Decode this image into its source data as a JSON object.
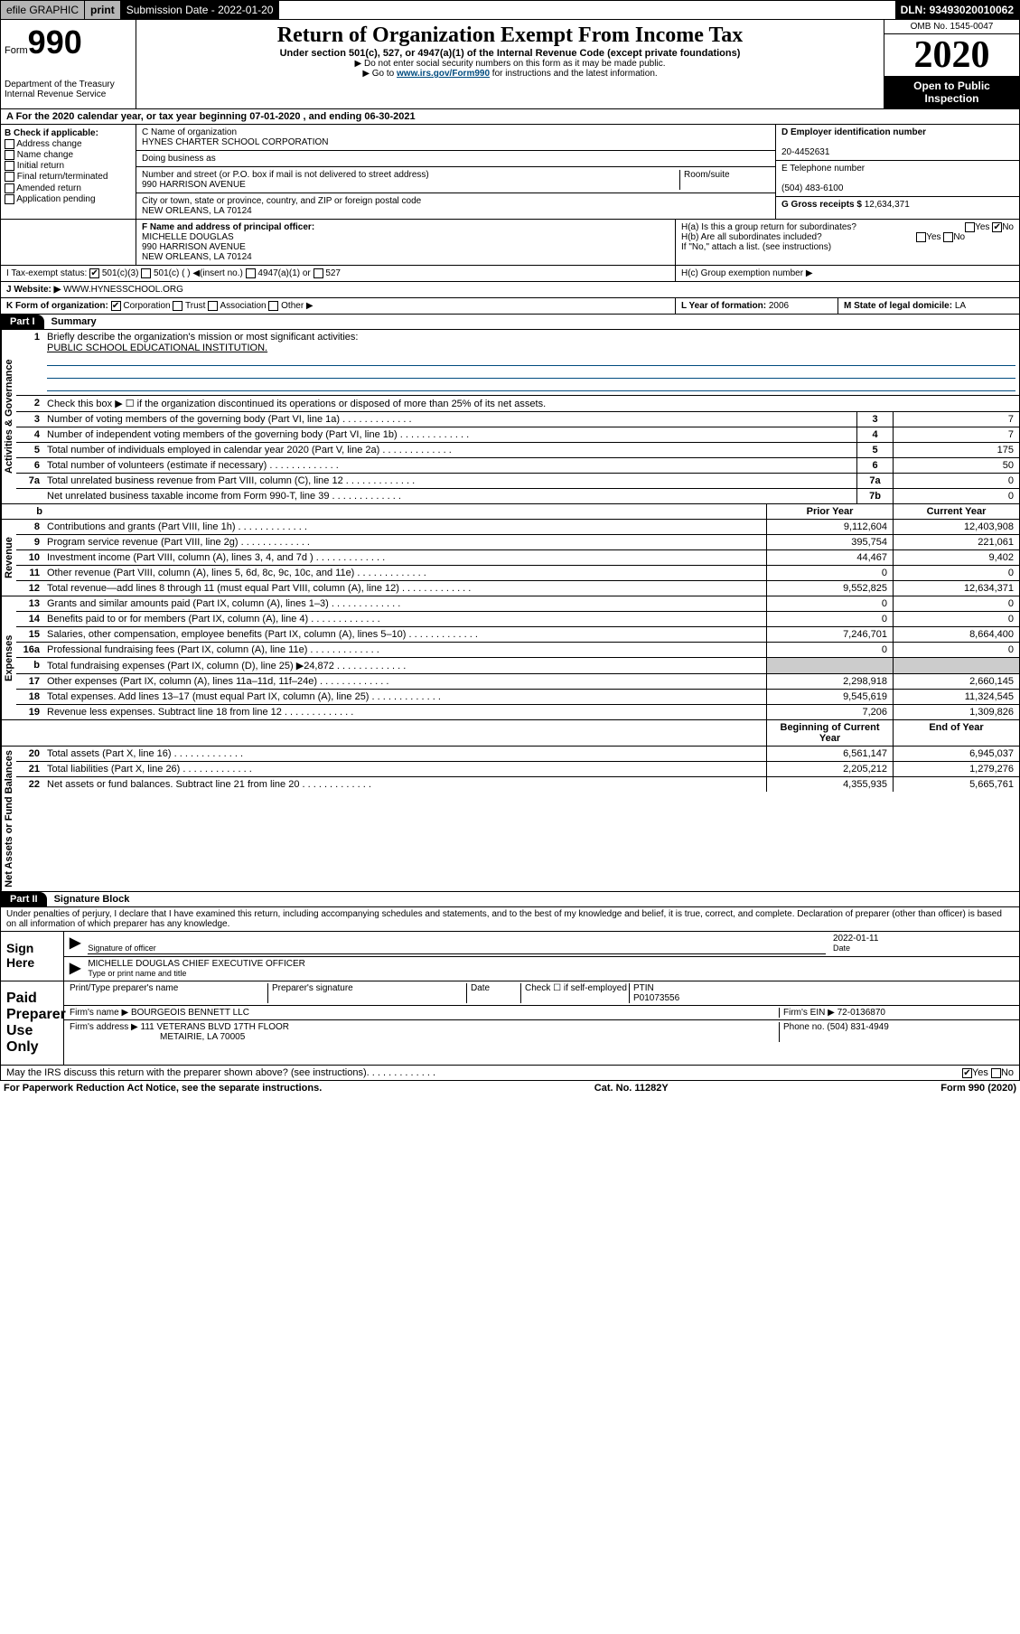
{
  "topbar": {
    "efile": "efile GRAPHIC",
    "print": "print",
    "subdate_label": "Submission Date - ",
    "subdate": "2022-01-20",
    "dln_label": "DLN: ",
    "dln": "93493020010062"
  },
  "header": {
    "form_prefix": "Form",
    "form_no": "990",
    "dept": "Department of the Treasury",
    "irs": "Internal Revenue Service",
    "title": "Return of Organization Exempt From Income Tax",
    "sub": "Under section 501(c), 527, or 4947(a)(1) of the Internal Revenue Code (except private foundations)",
    "note1": "▶ Do not enter social security numbers on this form as it may be made public.",
    "note2_a": "▶ Go to ",
    "note2_link": "www.irs.gov/Form990",
    "note2_b": " for instructions and the latest information.",
    "omb": "OMB No. 1545-0047",
    "year": "2020",
    "open": "Open to Public Inspection"
  },
  "rowA": {
    "text": "A For the 2020 calendar year, or tax year beginning 07-01-2020   , and ending 06-30-2021"
  },
  "colB": {
    "label": "B Check if applicable:",
    "items": [
      "Address change",
      "Name change",
      "Initial return",
      "Final return/terminated",
      "Amended return",
      "Application pending"
    ]
  },
  "colC": {
    "name_label": "C Name of organization",
    "name": "HYNES CHARTER SCHOOL CORPORATION",
    "dba_label": "Doing business as",
    "dba": "",
    "addr_label": "Number and street (or P.O. box if mail is not delivered to street address)",
    "room_label": "Room/suite",
    "addr": "990 HARRISON AVENUE",
    "city_label": "City or town, state or province, country, and ZIP or foreign postal code",
    "city": "NEW ORLEANS, LA  70124"
  },
  "colD": {
    "ein_label": "D Employer identification number",
    "ein": "20-4452631",
    "tel_label": "E Telephone number",
    "tel": "(504) 483-6100",
    "gross_label": "G Gross receipts $ ",
    "gross": "12,634,371"
  },
  "rowF": {
    "label": "F  Name and address of principal officer:",
    "name": "MICHELLE DOUGLAS",
    "addr1": "990 HARRISON AVENUE",
    "addr2": "NEW ORLEANS, LA  70124"
  },
  "rowH": {
    "a": "H(a)  Is this a group return for subordinates?",
    "b": "H(b)  Are all subordinates included?",
    "bnote": "If \"No,\" attach a list. (see instructions)",
    "c": "H(c)  Group exemption number ▶"
  },
  "rowI": {
    "label": "I    Tax-exempt status:",
    "opts": [
      "501(c)(3)",
      "501(c) (  ) ◀(insert no.)",
      "4947(a)(1) or",
      "527"
    ]
  },
  "rowJ": {
    "label": "J    Website: ▶",
    "val": "  WWW.HYNESSCHOOL.ORG"
  },
  "rowK": {
    "label": "K Form of organization:",
    "opts": [
      "Corporation",
      "Trust",
      "Association",
      "Other ▶"
    ],
    "year_label": "L Year of formation: ",
    "year": "2006",
    "state_label": "M State of legal domicile: ",
    "state": "LA"
  },
  "part1": {
    "tab": "Part I",
    "title": "Summary"
  },
  "summary": {
    "q1": "Briefly describe the organization's mission or most significant activities:",
    "q1val": "PUBLIC SCHOOL EDUCATIONAL INSTITUTION.",
    "q2": "Check this box ▶ ☐  if the organization discontinued its operations or disposed of more than 25% of its net assets.",
    "rows": [
      {
        "n": "3",
        "t": "Number of voting members of the governing body (Part VI, line 1a)",
        "c": "3",
        "v": "7"
      },
      {
        "n": "4",
        "t": "Number of independent voting members of the governing body (Part VI, line 1b)",
        "c": "4",
        "v": "7"
      },
      {
        "n": "5",
        "t": "Total number of individuals employed in calendar year 2020 (Part V, line 2a)",
        "c": "5",
        "v": "175"
      },
      {
        "n": "6",
        "t": "Total number of volunteers (estimate if necessary)",
        "c": "6",
        "v": "50"
      },
      {
        "n": "7a",
        "t": "Total unrelated business revenue from Part VIII, column (C), line 12",
        "c": "7a",
        "v": "0"
      },
      {
        "n": "",
        "t": "Net unrelated business taxable income from Form 990-T, line 39",
        "c": "7b",
        "v": "0"
      }
    ]
  },
  "tabs": {
    "gov": "Activities & Governance",
    "rev": "Revenue",
    "exp": "Expenses",
    "net": "Net Assets or Fund Balances"
  },
  "cols": {
    "prior": "Prior Year",
    "current": "Current Year",
    "begin": "Beginning of Current Year",
    "end": "End of Year"
  },
  "revenue": [
    {
      "n": "8",
      "t": "Contributions and grants (Part VIII, line 1h)",
      "p": "9,112,604",
      "c": "12,403,908"
    },
    {
      "n": "9",
      "t": "Program service revenue (Part VIII, line 2g)",
      "p": "395,754",
      "c": "221,061"
    },
    {
      "n": "10",
      "t": "Investment income (Part VIII, column (A), lines 3, 4, and 7d )",
      "p": "44,467",
      "c": "9,402"
    },
    {
      "n": "11",
      "t": "Other revenue (Part VIII, column (A), lines 5, 6d, 8c, 9c, 10c, and 11e)",
      "p": "0",
      "c": "0"
    },
    {
      "n": "12",
      "t": "Total revenue—add lines 8 through 11 (must equal Part VIII, column (A), line 12)",
      "p": "9,552,825",
      "c": "12,634,371"
    }
  ],
  "expenses": [
    {
      "n": "13",
      "t": "Grants and similar amounts paid (Part IX, column (A), lines 1–3)",
      "p": "0",
      "c": "0"
    },
    {
      "n": "14",
      "t": "Benefits paid to or for members (Part IX, column (A), line 4)",
      "p": "0",
      "c": "0"
    },
    {
      "n": "15",
      "t": "Salaries, other compensation, employee benefits (Part IX, column (A), lines 5–10)",
      "p": "7,246,701",
      "c": "8,664,400"
    },
    {
      "n": "16a",
      "t": "Professional fundraising fees (Part IX, column (A), line 11e)",
      "p": "0",
      "c": "0"
    },
    {
      "n": "b",
      "t": "Total fundraising expenses (Part IX, column (D), line 25) ▶24,872",
      "p": "",
      "c": "",
      "shade": true
    },
    {
      "n": "17",
      "t": "Other expenses (Part IX, column (A), lines 11a–11d, 11f–24e)",
      "p": "2,298,918",
      "c": "2,660,145"
    },
    {
      "n": "18",
      "t": "Total expenses. Add lines 13–17 (must equal Part IX, column (A), line 25)",
      "p": "9,545,619",
      "c": "11,324,545"
    },
    {
      "n": "19",
      "t": "Revenue less expenses. Subtract line 18 from line 12",
      "p": "7,206",
      "c": "1,309,826"
    }
  ],
  "netassets": [
    {
      "n": "20",
      "t": "Total assets (Part X, line 16)",
      "p": "6,561,147",
      "c": "6,945,037"
    },
    {
      "n": "21",
      "t": "Total liabilities (Part X, line 26)",
      "p": "2,205,212",
      "c": "1,279,276"
    },
    {
      "n": "22",
      "t": "Net assets or fund balances. Subtract line 21 from line 20",
      "p": "4,355,935",
      "c": "5,665,761"
    }
  ],
  "part2": {
    "tab": "Part II",
    "title": "Signature Block",
    "decl": "Under penalties of perjury, I declare that I have examined this return, including accompanying schedules and statements, and to the best of my knowledge and belief, it is true, correct, and complete. Declaration of preparer (other than officer) is based on all information of which preparer has any knowledge."
  },
  "sign": {
    "here": "Sign Here",
    "sig_label": "Signature of officer",
    "date_label": "Date",
    "date": "2022-01-11",
    "name": "MICHELLE DOUGLAS  CHIEF EXECUTIVE OFFICER",
    "name_label": "Type or print name and title"
  },
  "paid": {
    "title": "Paid Preparer Use Only",
    "pname_label": "Print/Type preparer's name",
    "psig_label": "Preparer's signature",
    "pdate_label": "Date",
    "check_label": "Check ☐ if self-employed",
    "ptin_label": "PTIN",
    "ptin": "P01073556",
    "firm_label": "Firm's name   ▶",
    "firm": "BOURGEOIS BENNETT LLC",
    "fein_label": "Firm's EIN ▶",
    "fein": "72-0136870",
    "faddr_label": "Firm's address ▶",
    "faddr1": "111 VETERANS BLVD 17TH FLOOR",
    "faddr2": "METAIRIE, LA  70005",
    "phone_label": "Phone no. ",
    "phone": "(504) 831-4949"
  },
  "discuss": "May the IRS discuss this return with the preparer shown above? (see instructions)",
  "footer": {
    "left": "For Paperwork Reduction Act Notice, see the separate instructions.",
    "mid": "Cat. No. 11282Y",
    "right": "Form 990 (2020)"
  }
}
